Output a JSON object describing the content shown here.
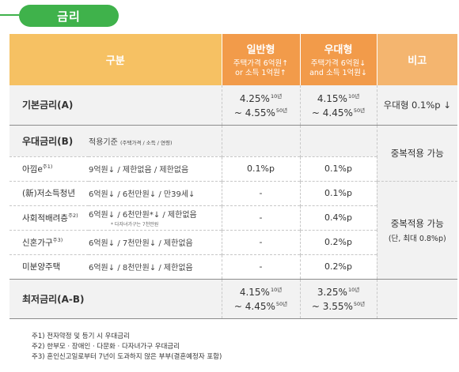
{
  "section_title": "금리",
  "table": {
    "headers": {
      "category": "구분",
      "general_title": "일반형",
      "general_cond1": "주택가격 6억원↑",
      "general_cond2": "or 소득 1억원↑",
      "preferential_title": "우대형",
      "preferential_cond1": "주택가격 6억원↓",
      "preferential_cond2": "and 소득 1억원↓",
      "remarks": "비고"
    },
    "base_rate": {
      "label": "기본금리(A)",
      "general_low": "4.25%",
      "general_low_term": "10년",
      "general_high": "~ 4.55%",
      "general_high_term": "50년",
      "pref_low": "4.15%",
      "pref_low_term": "10년",
      "pref_high": "~ 4.45%",
      "pref_high_term": "50년",
      "remark": "우대형 0.1%p ↓"
    },
    "preferential_rate": {
      "label": "우대금리(B)",
      "criteria_label": "적용기준",
      "criteria_detail": "(주택가격 / 소득 / 연령)"
    },
    "rows": [
      {
        "name": "아낌e",
        "note": "주1)",
        "criteria": "9억원↓ / 제한없음 / 제한없음",
        "general": "0.1%p",
        "pref": "0.1%p"
      },
      {
        "name": "(新)저소득청년",
        "note": "",
        "criteria": "6억원↓ / 6천만원↓ / 만39세↓",
        "general": "-",
        "pref": "0.1%p"
      },
      {
        "name": "사회적배려층",
        "note": "주2)",
        "criteria": "6억원↓ / 6천만원*↓ / 제한없음",
        "criteria_note": "* 다자녀가구는 7천만원",
        "general": "-",
        "pref": "0.4%p"
      },
      {
        "name": "신혼가구",
        "note": "주3)",
        "criteria": "6억원↓ / 7천만원↓ / 제한없음",
        "general": "-",
        "pref": "0.2%p"
      },
      {
        "name": "미분양주택",
        "note": "",
        "criteria": "6억원↓ / 8천만원↓ / 제한없음",
        "general": "-",
        "pref": "0.2%p"
      }
    ],
    "remark_duplicate_1": "중복적용 가능",
    "remark_duplicate_2": "중복적용 가능",
    "remark_duplicate_2_sub": "(단, 최대 0.8%p)",
    "min_rate": {
      "label": "최저금리(A-B)",
      "general_low": "4.15%",
      "general_low_term": "10년",
      "general_high": "~ 4.45%",
      "general_high_term": "50년",
      "pref_low": "3.25%",
      "pref_low_term": "10년",
      "pref_high": "~ 3.55%",
      "pref_high_term": "50년"
    }
  },
  "footnotes": [
    "주1) 전자약정 및 등기 시 우대금리",
    "주2) 한부모 · 장애인 · 다문화 · 다자녀가구 우대금리",
    "주3) 혼인신고일로부터 7년이 도과하지 않은 부부(결혼예정자 포함)"
  ]
}
